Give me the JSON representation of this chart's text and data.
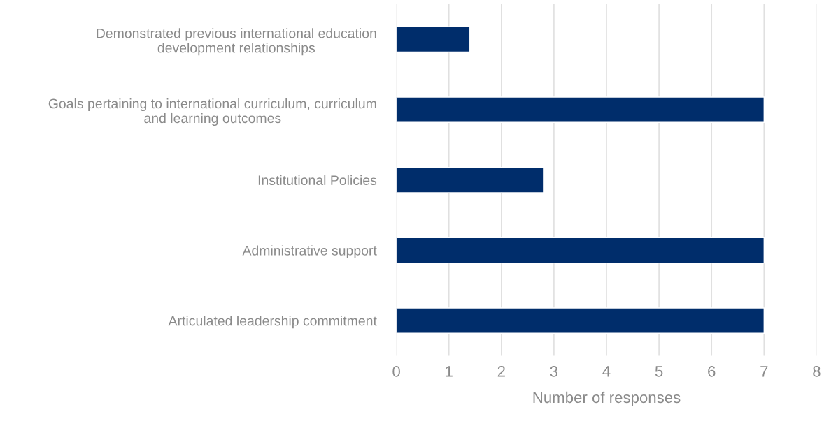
{
  "chart_data": {
    "type": "bar",
    "orientation": "horizontal",
    "xlabel": "Number of responses",
    "categories": [
      "Demonstrated previous international education\ndevelopment relationships",
      "Goals pertaining to international curriculum, curriculum\nand learning outcomes",
      "Institutional Policies",
      "Administrative support",
      "Articulated leadership commitment"
    ],
    "values": [
      1.4,
      7,
      2.8,
      7,
      7
    ],
    "color": "#002d6b",
    "xlim": [
      0,
      8
    ],
    "xticks": [
      0,
      1,
      2,
      3,
      4,
      5,
      6,
      7,
      8
    ],
    "grid": "x"
  }
}
